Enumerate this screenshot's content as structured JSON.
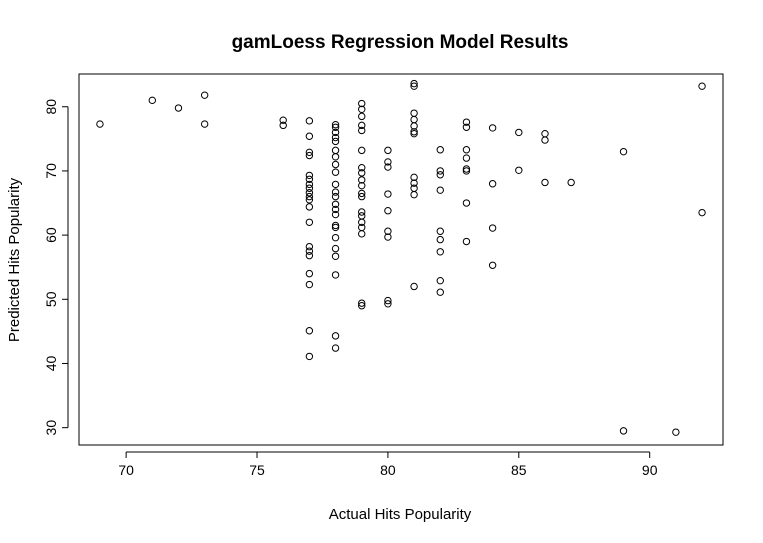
{
  "chart_data": {
    "type": "scatter",
    "title": "gamLoess Regression Model Results",
    "xlabel": "Actual Hits Popularity",
    "ylabel": "Predicted Hits Popularity",
    "xlim": [
      68.2,
      92.8
    ],
    "ylim": [
      27.3,
      85.1
    ],
    "xticks": [
      "70",
      "75",
      "80",
      "85",
      "90"
    ],
    "yticks": [
      "30",
      "40",
      "50",
      "60",
      "70",
      "80"
    ],
    "grid": false,
    "legend": "none",
    "points": [
      [
        69,
        77.3
      ],
      [
        71,
        81.0
      ],
      [
        72,
        79.8
      ],
      [
        73,
        81.8
      ],
      [
        73,
        77.3
      ],
      [
        76,
        77.9
      ],
      [
        76,
        77.1
      ],
      [
        77,
        77.8
      ],
      [
        77,
        75.4
      ],
      [
        77,
        72.9
      ],
      [
        77,
        72.4
      ],
      [
        77,
        69.3
      ],
      [
        77,
        68.7
      ],
      [
        77,
        67.9
      ],
      [
        77,
        67.3
      ],
      [
        77,
        66.6
      ],
      [
        77,
        66.0
      ],
      [
        77,
        65.5
      ],
      [
        77,
        64.4
      ],
      [
        77,
        62.0
      ],
      [
        77,
        58.2
      ],
      [
        77,
        57.5
      ],
      [
        77,
        56.8
      ],
      [
        77,
        54.0
      ],
      [
        77,
        52.3
      ],
      [
        77,
        45.1
      ],
      [
        77,
        41.1
      ],
      [
        78,
        77.2
      ],
      [
        78,
        76.8
      ],
      [
        78,
        76.0
      ],
      [
        78,
        75.2
      ],
      [
        78,
        74.6
      ],
      [
        78,
        73.2
      ],
      [
        78,
        72.2
      ],
      [
        78,
        71.0
      ],
      [
        78,
        69.8
      ],
      [
        78,
        67.9
      ],
      [
        78,
        66.7
      ],
      [
        78,
        66.0
      ],
      [
        78,
        64.8
      ],
      [
        78,
        64.0
      ],
      [
        78,
        63.2
      ],
      [
        78,
        61.5
      ],
      [
        78,
        61.2
      ],
      [
        78,
        59.6
      ],
      [
        78,
        57.9
      ],
      [
        78,
        56.7
      ],
      [
        78,
        53.8
      ],
      [
        78,
        44.3
      ],
      [
        78,
        42.4
      ],
      [
        79,
        80.5
      ],
      [
        79,
        79.6
      ],
      [
        79,
        78.5
      ],
      [
        79,
        77.1
      ],
      [
        79,
        76.3
      ],
      [
        79,
        73.2
      ],
      [
        79,
        70.5
      ],
      [
        79,
        69.7
      ],
      [
        79,
        68.6
      ],
      [
        79,
        67.7
      ],
      [
        79,
        66.5
      ],
      [
        79,
        66.0
      ],
      [
        79,
        63.6
      ],
      [
        79,
        63.0
      ],
      [
        79,
        62.0
      ],
      [
        79,
        61.2
      ],
      [
        79,
        60.2
      ],
      [
        79,
        49.4
      ],
      [
        79,
        49.0
      ],
      [
        80,
        73.2
      ],
      [
        80,
        71.4
      ],
      [
        80,
        70.6
      ],
      [
        80,
        66.4
      ],
      [
        80,
        63.8
      ],
      [
        80,
        60.6
      ],
      [
        80,
        59.7
      ],
      [
        80,
        49.8
      ],
      [
        80,
        49.3
      ],
      [
        81,
        83.6
      ],
      [
        81,
        83.2
      ],
      [
        81,
        79.0
      ],
      [
        81,
        78.0
      ],
      [
        81,
        77.0
      ],
      [
        81,
        76.1
      ],
      [
        81,
        75.8
      ],
      [
        81,
        69.0
      ],
      [
        81,
        68.1
      ],
      [
        81,
        67.3
      ],
      [
        81,
        66.3
      ],
      [
        81,
        52.0
      ],
      [
        82,
        73.3
      ],
      [
        82,
        70.0
      ],
      [
        82,
        69.4
      ],
      [
        82,
        67.0
      ],
      [
        82,
        60.6
      ],
      [
        82,
        59.3
      ],
      [
        82,
        57.4
      ],
      [
        82,
        52.9
      ],
      [
        82,
        51.1
      ],
      [
        83,
        77.6
      ],
      [
        83,
        76.8
      ],
      [
        83,
        73.3
      ],
      [
        83,
        72.0
      ],
      [
        83,
        70.3
      ],
      [
        83,
        70.0
      ],
      [
        83,
        65.0
      ],
      [
        83,
        59.0
      ],
      [
        84,
        76.7
      ],
      [
        84,
        68.0
      ],
      [
        84,
        61.1
      ],
      [
        84,
        55.3
      ],
      [
        85,
        76.0
      ],
      [
        85,
        70.1
      ],
      [
        86,
        75.8
      ],
      [
        86,
        74.8
      ],
      [
        86,
        68.2
      ],
      [
        87,
        68.2
      ],
      [
        89,
        73.0
      ],
      [
        89,
        29.5
      ],
      [
        91,
        29.3
      ],
      [
        92,
        83.2
      ],
      [
        92,
        63.5
      ]
    ]
  }
}
